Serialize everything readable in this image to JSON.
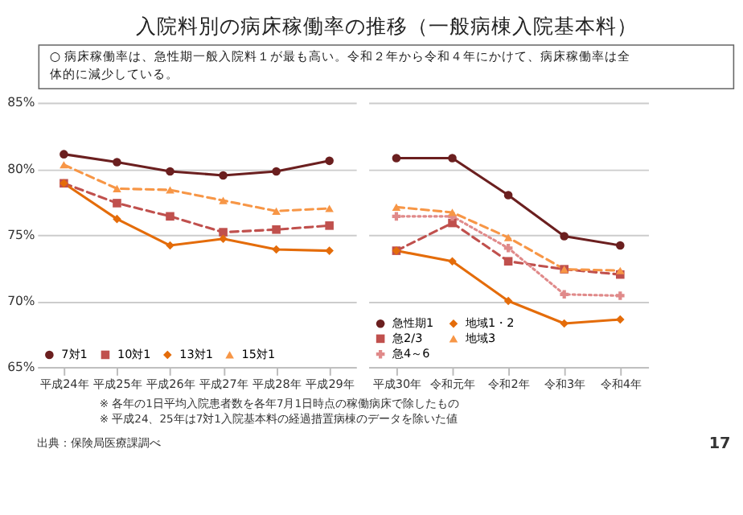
{
  "chart_data": [
    {
      "type": "line",
      "title": "入院料別の病床稼働率の推移（一般病棟入院基本料）",
      "subtitle": "○ 病床稼働率は、急性期一般入院料１が最も高い。令和２年から令和４年にかけて、病床稼働率は全体的に減少している。",
      "annotations": [
        "※ 各年の1日平均入院患者数を各年7月1日時点の稼働病床で除したもの",
        "※ 平成24、25年は7対1入院基本料の経過措置病棟のデータを除いた値",
        "出典：保険局医療課調べ",
        "17"
      ],
      "categories": [
        "平成24年",
        "平成25年",
        "平成26年",
        "平成27年",
        "平成28年",
        "平成29年"
      ],
      "ylim": [
        65,
        85
      ],
      "yticks": [
        {
          "value": 65,
          "label": "65%"
        },
        {
          "value": 70,
          "label": "70%"
        },
        {
          "value": 75,
          "label": "75%"
        },
        {
          "value": 80,
          "label": "80%"
        },
        {
          "value": 85,
          "label": "85%"
        }
      ],
      "grid": "y",
      "legend": "bottom",
      "series": [
        {
          "name": "7対1",
          "color": "#6b1f1f",
          "marker": "circle",
          "line_style": "solid",
          "values": [
            81.1,
            80.5,
            79.8,
            79.5,
            79.8,
            80.6
          ]
        },
        {
          "name": "10対1",
          "color": "#c0504d",
          "marker": "square",
          "line_style": "dashed",
          "values": [
            78.9,
            77.4,
            76.4,
            75.2,
            75.4,
            75.7
          ]
        },
        {
          "name": "13対1",
          "color": "#e46c0a",
          "marker": "diamond",
          "line_style": "solid",
          "values": [
            78.9,
            76.2,
            74.2,
            74.7,
            73.9,
            73.8
          ]
        },
        {
          "name": "15対1",
          "color": "#f79646",
          "marker": "triangle",
          "line_style": "dashed",
          "values": [
            80.3,
            78.5,
            78.4,
            77.6,
            76.8,
            77.0
          ]
        }
      ]
    },
    {
      "type": "line",
      "categories": [
        "平成30年",
        "令和元年",
        "令和2年",
        "令和3年",
        "令和4年"
      ],
      "ylim": [
        65,
        85
      ],
      "yticks": [
        65,
        70,
        75,
        80,
        85
      ],
      "tick_labels": "x",
      "grid": "y",
      "legend": "bottom left",
      "series": [
        {
          "name": "急性期1",
          "color": "#6b1f1f",
          "marker": "circle",
          "line_style": "solid",
          "values": [
            80.8,
            80.8,
            78.0,
            74.9,
            74.2
          ]
        },
        {
          "name": "急2/3",
          "color": "#c0504d",
          "marker": "square",
          "line_style": "dashed",
          "values": [
            73.8,
            75.9,
            73.0,
            72.4,
            72.0
          ]
        },
        {
          "name": "急4～6",
          "color": "#e08a8a",
          "marker": "cross",
          "line_style": "dotted",
          "values": [
            76.4,
            76.4,
            74.0,
            70.5,
            70.4
          ]
        },
        {
          "name": "地域1・2",
          "color": "#e46c0a",
          "marker": "diamond",
          "line_style": "solid",
          "values": [
            73.8,
            73.0,
            70.0,
            68.3,
            68.6
          ]
        },
        {
          "name": "地域3",
          "color": "#f79646",
          "marker": "triangle",
          "line_style": "dashed",
          "values": [
            77.1,
            76.7,
            74.8,
            72.4,
            72.3
          ]
        }
      ]
    }
  ]
}
